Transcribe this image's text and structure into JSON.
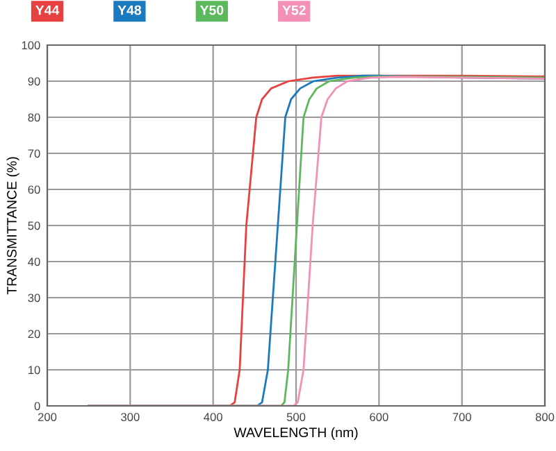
{
  "chart_data": {
    "type": "line",
    "xlabel": "WAVELENGTH (nm)",
    "ylabel": "TRANSMITTANCE (%)",
    "xlim": [
      200,
      800
    ],
    "ylim": [
      0,
      100
    ],
    "xticks": [
      200,
      300,
      400,
      500,
      600,
      700,
      800
    ],
    "yticks": [
      0,
      10,
      20,
      30,
      40,
      50,
      60,
      70,
      80,
      90,
      100
    ],
    "grid": true,
    "legend": "top",
    "line_style": "solid",
    "series": [
      {
        "name": "Y44",
        "color": "#e8403f",
        "x": [
          250,
          420,
          426,
          432,
          440,
          452,
          459,
          470,
          491,
          520,
          550,
          600,
          700,
          800
        ],
        "values": [
          0,
          0,
          1,
          10,
          50,
          80,
          85,
          88,
          90,
          91,
          91.5,
          91.5,
          91.5,
          91.3
        ]
      },
      {
        "name": "Y48",
        "color": "#1a7abf",
        "x": [
          250,
          453,
          459,
          466,
          478,
          487,
          494,
          505,
          521,
          550,
          580,
          600,
          700,
          800
        ],
        "values": [
          0,
          0,
          1,
          10,
          50,
          80,
          85,
          88,
          90,
          91,
          91.5,
          91.5,
          91,
          90.7
        ]
      },
      {
        "name": "Y50",
        "color": "#5cb85c",
        "x": [
          250,
          482,
          486,
          490.5,
          501,
          509,
          516,
          525,
          540,
          570,
          600,
          700,
          800
        ],
        "values": [
          0,
          0,
          1,
          10,
          50,
          80,
          85,
          88,
          90,
          91,
          91.3,
          91.2,
          91
        ]
      },
      {
        "name": "Y52",
        "color": "#f48fb8",
        "x": [
          250,
          497,
          502,
          509,
          520,
          530.5,
          538,
          548,
          562,
          590,
          620,
          700,
          800
        ],
        "values": [
          0,
          0,
          1,
          10,
          50,
          80,
          85,
          88,
          90,
          91,
          91.2,
          91,
          90.7
        ]
      }
    ]
  }
}
